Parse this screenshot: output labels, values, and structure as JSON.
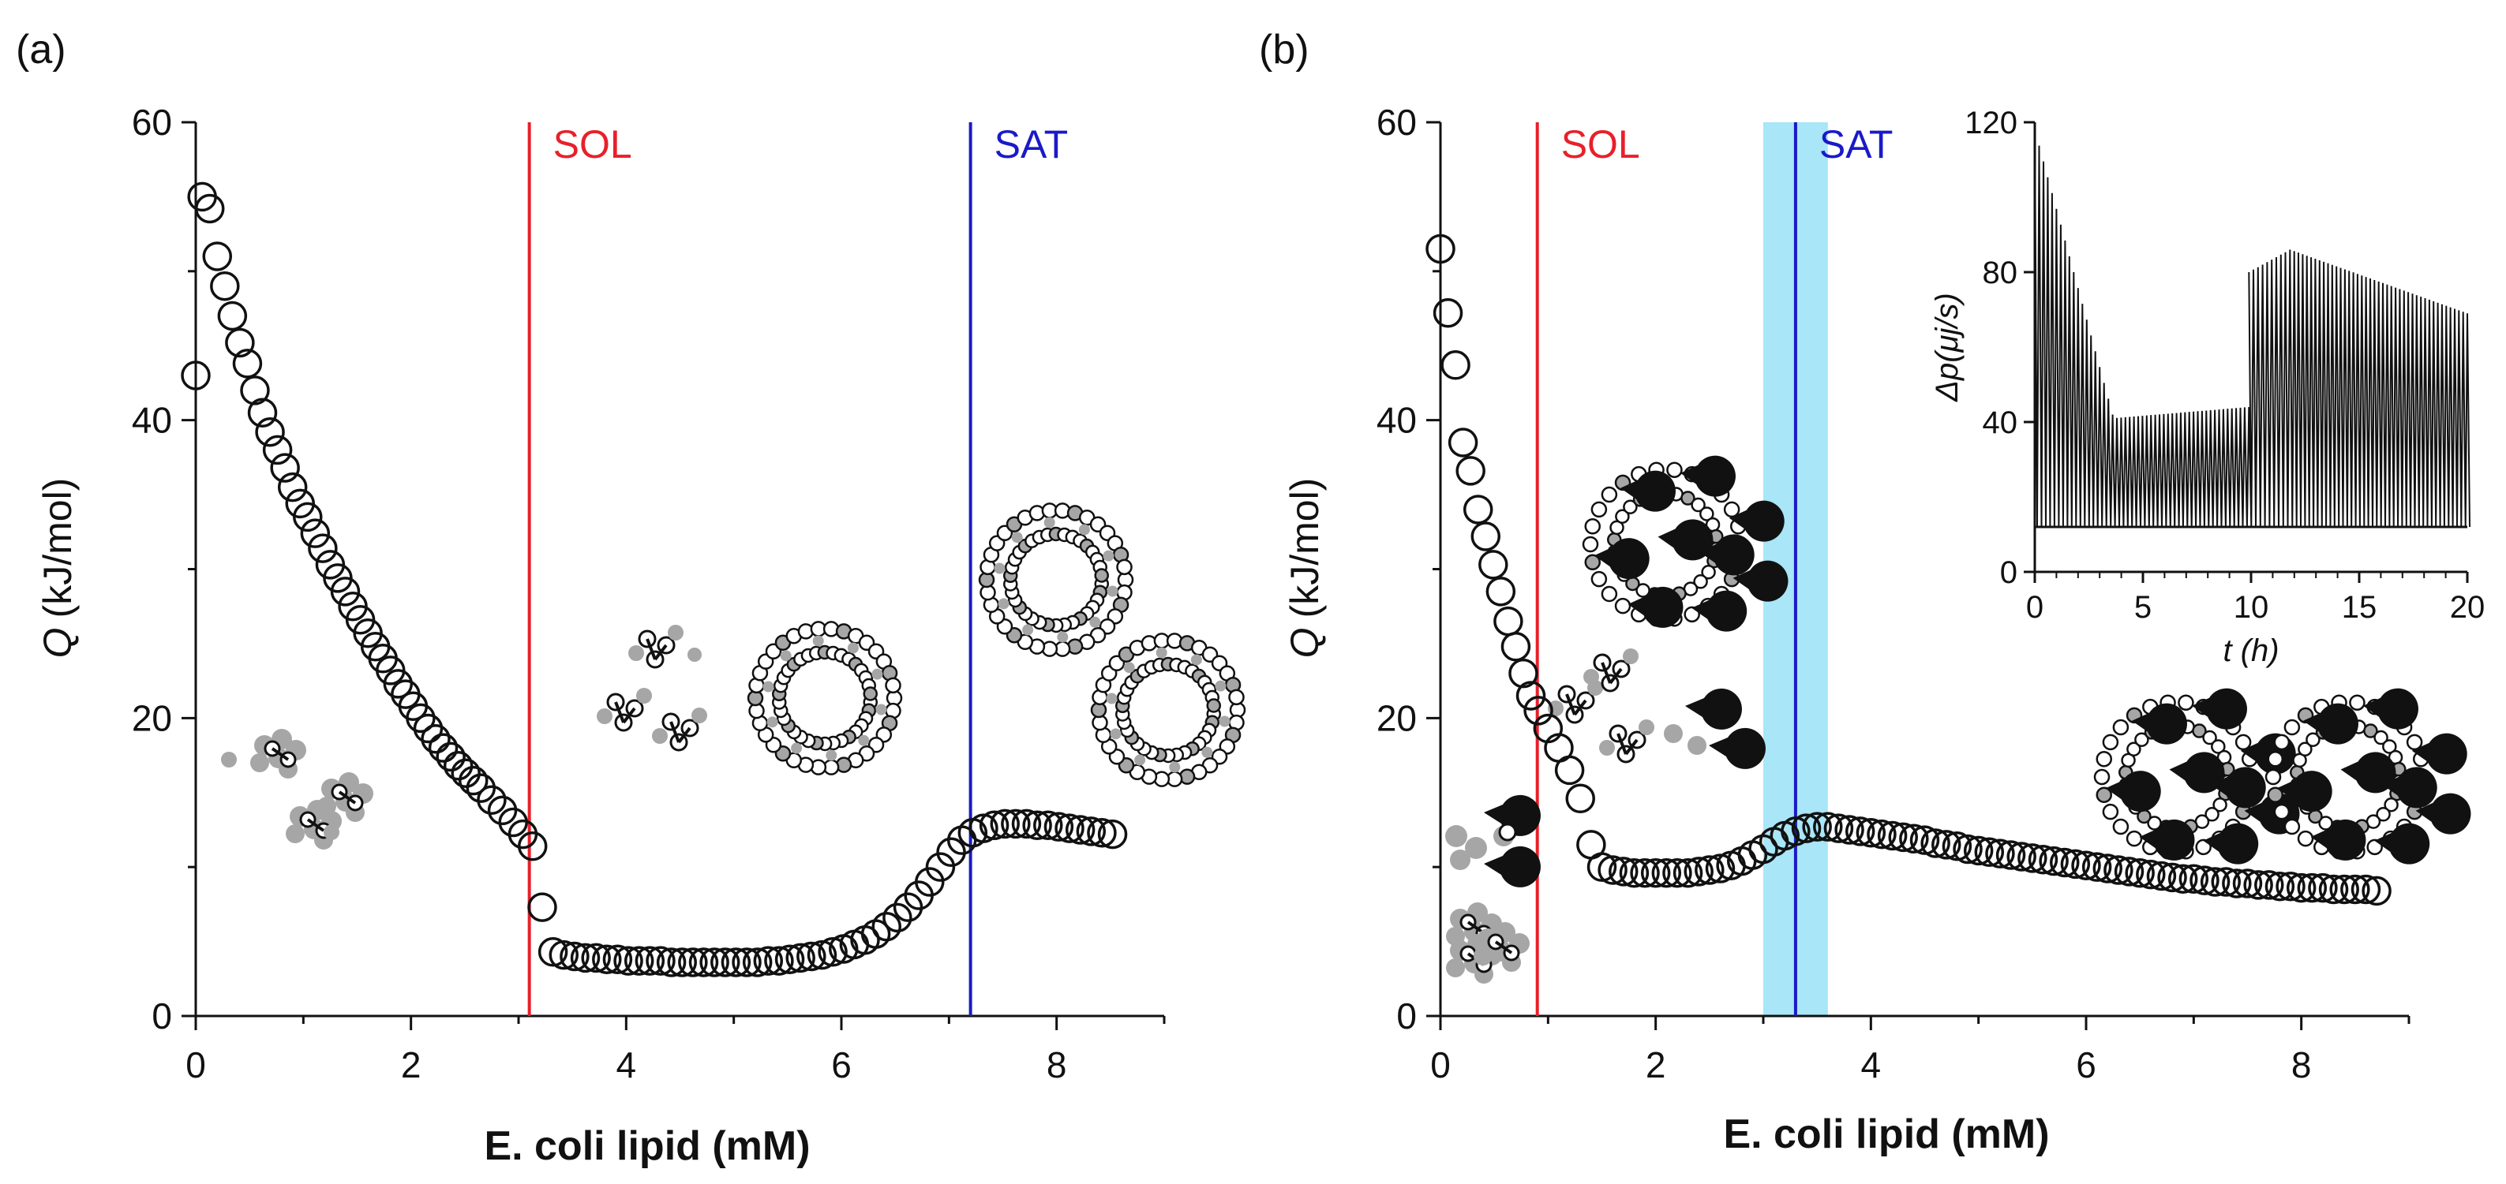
{
  "colors": {
    "sol": "#e8202a",
    "sat": "#1a1ac8",
    "band": "#a8e6f8",
    "marker": "#111111",
    "grey": "#a6a6a6",
    "black": "#111111"
  },
  "chart_data": [
    {
      "panel": "(a)",
      "type": "scatter",
      "xlabel": "E. coli lipid (mM)",
      "ylabel_symbol": "Q",
      "ylabel_unit": "(kJ/mol)",
      "xlim": [
        0,
        9
      ],
      "ylim": [
        0,
        60
      ],
      "xticks": [
        0,
        2,
        4,
        6,
        8
      ],
      "yticks": [
        0,
        20,
        40,
        60
      ],
      "vlines": [
        {
          "label": "SOL",
          "x": 3.1,
          "color": "sol"
        },
        {
          "label": "SAT",
          "x": 7.2,
          "color": "sat"
        }
      ],
      "series": [
        {
          "name": "Q",
          "marker": "open-circle",
          "x": [
            0.0,
            0.06,
            0.13,
            0.2,
            0.27,
            0.34,
            0.41,
            0.48,
            0.55,
            0.62,
            0.69,
            0.76,
            0.83,
            0.9,
            0.97,
            1.04,
            1.11,
            1.18,
            1.25,
            1.32,
            1.39,
            1.46,
            1.53,
            1.6,
            1.67,
            1.74,
            1.81,
            1.88,
            1.95,
            2.02,
            2.09,
            2.16,
            2.23,
            2.3,
            2.37,
            2.44,
            2.51,
            2.58,
            2.65,
            2.75,
            2.85,
            2.95,
            3.04,
            3.13,
            3.22,
            3.32,
            3.42,
            3.52,
            3.62,
            3.72,
            3.82,
            3.92,
            4.02,
            4.12,
            4.22,
            4.32,
            4.42,
            4.52,
            4.62,
            4.72,
            4.82,
            4.92,
            5.02,
            5.12,
            5.22,
            5.32,
            5.42,
            5.52,
            5.62,
            5.72,
            5.82,
            5.92,
            6.02,
            6.12,
            6.22,
            6.32,
            6.42,
            6.52,
            6.62,
            6.72,
            6.82,
            6.92,
            7.02,
            7.12,
            7.22,
            7.32,
            7.42,
            7.52,
            7.62,
            7.72,
            7.82,
            7.92,
            8.02,
            8.12,
            8.22,
            8.32,
            8.42,
            8.52
          ],
          "y": [
            43.0,
            55.0,
            54.2,
            51.0,
            49.0,
            47.0,
            45.2,
            43.8,
            42.0,
            40.5,
            39.2,
            38.0,
            36.8,
            35.5,
            34.4,
            33.5,
            32.4,
            31.4,
            30.3,
            29.4,
            28.5,
            27.5,
            26.6,
            25.7,
            24.8,
            24.0,
            23.2,
            22.3,
            21.6,
            20.8,
            20.0,
            19.3,
            18.6,
            18.0,
            17.4,
            16.8,
            16.3,
            15.8,
            15.3,
            14.5,
            13.8,
            13.0,
            12.2,
            11.4,
            7.3,
            4.3,
            4.1,
            4.0,
            3.9,
            3.9,
            3.8,
            3.8,
            3.7,
            3.7,
            3.7,
            3.7,
            3.6,
            3.6,
            3.6,
            3.6,
            3.6,
            3.6,
            3.6,
            3.6,
            3.6,
            3.7,
            3.7,
            3.8,
            3.9,
            4.0,
            4.1,
            4.3,
            4.5,
            4.8,
            5.1,
            5.5,
            6.0,
            6.6,
            7.3,
            8.1,
            9.0,
            10.0,
            11.0,
            11.8,
            12.3,
            12.6,
            12.8,
            12.9,
            12.9,
            12.9,
            12.8,
            12.8,
            12.7,
            12.6,
            12.5,
            12.4,
            12.3,
            12.2
          ]
        }
      ]
    },
    {
      "panel": "(b)",
      "type": "scatter",
      "xlabel": "E. coli lipid (mM)",
      "ylabel_symbol": "Q",
      "ylabel_unit": "(kJ/mol)",
      "xlim": [
        0,
        9
      ],
      "ylim": [
        0,
        60
      ],
      "xticks": [
        0,
        2,
        4,
        6,
        8
      ],
      "yticks": [
        0,
        20,
        40,
        60
      ],
      "band": [
        3.0,
        3.6
      ],
      "vlines": [
        {
          "label": "SOL",
          "x": 0.9,
          "color": "sol"
        },
        {
          "label": "SAT",
          "x": 3.3,
          "color": "sat"
        }
      ],
      "series": [
        {
          "name": "Q",
          "marker": "open-circle",
          "x": [
            0.0,
            0.07,
            0.14,
            0.21,
            0.28,
            0.35,
            0.42,
            0.49,
            0.56,
            0.63,
            0.7,
            0.77,
            0.84,
            0.91,
            1.0,
            1.1,
            1.2,
            1.3,
            1.4,
            1.5,
            1.6,
            1.7,
            1.8,
            1.9,
            2.0,
            2.1,
            2.2,
            2.3,
            2.4,
            2.5,
            2.6,
            2.7,
            2.8,
            2.9,
            3.0,
            3.1,
            3.2,
            3.3,
            3.4,
            3.5,
            3.6,
            3.7,
            3.8,
            3.9,
            4.0,
            4.1,
            4.2,
            4.3,
            4.4,
            4.5,
            4.6,
            4.7,
            4.8,
            4.9,
            5.0,
            5.1,
            5.2,
            5.3,
            5.4,
            5.5,
            5.6,
            5.7,
            5.8,
            5.9,
            6.0,
            6.1,
            6.2,
            6.3,
            6.4,
            6.5,
            6.6,
            6.7,
            6.8,
            6.9,
            7.0,
            7.1,
            7.2,
            7.3,
            7.4,
            7.5,
            7.6,
            7.7,
            7.8,
            7.9,
            8.0,
            8.1,
            8.2,
            8.3,
            8.4,
            8.5,
            8.6,
            8.7
          ],
          "y": [
            51.5,
            47.2,
            43.7,
            38.5,
            36.6,
            34.0,
            32.2,
            30.3,
            28.5,
            26.5,
            24.8,
            23.0,
            21.5,
            20.5,
            19.3,
            18.0,
            16.5,
            14.6,
            11.5,
            10.0,
            9.8,
            9.7,
            9.6,
            9.6,
            9.6,
            9.6,
            9.6,
            9.6,
            9.7,
            9.8,
            9.9,
            10.1,
            10.4,
            10.8,
            11.2,
            11.7,
            12.1,
            12.4,
            12.6,
            12.7,
            12.7,
            12.6,
            12.5,
            12.4,
            12.3,
            12.2,
            12.1,
            12.0,
            11.9,
            11.8,
            11.6,
            11.5,
            11.4,
            11.2,
            11.1,
            11.0,
            10.9,
            10.8,
            10.7,
            10.6,
            10.5,
            10.4,
            10.3,
            10.2,
            10.1,
            10.0,
            9.9,
            9.8,
            9.7,
            9.6,
            9.5,
            9.4,
            9.3,
            9.2,
            9.2,
            9.1,
            9.0,
            9.0,
            8.9,
            8.9,
            8.8,
            8.8,
            8.7,
            8.7,
            8.6,
            8.6,
            8.6,
            8.5,
            8.5,
            8.5,
            8.5,
            8.4
          ]
        }
      ],
      "inset": {
        "type": "line",
        "xlabel": "t (h)",
        "ylabel": "Δp(μj/s)",
        "xlim": [
          0,
          20
        ],
        "ylim": [
          0,
          120
        ],
        "xticks": [
          0,
          5,
          10,
          15,
          20
        ],
        "yticks": [
          0,
          40,
          80,
          120
        ],
        "baseline": 12,
        "segments": [
          {
            "t_start": 0.0,
            "t_end": 3.6,
            "peak_start": 118,
            "peak_end": 42
          },
          {
            "t_start": 3.6,
            "t_end": 9.9,
            "peak_start": 41,
            "peak_end": 44
          },
          {
            "t_start": 9.9,
            "t_end": 11.8,
            "peak_start": 80,
            "peak_end": 86
          },
          {
            "t_start": 11.8,
            "t_end": 20.0,
            "peak_start": 86,
            "peak_end": 69
          }
        ]
      }
    }
  ]
}
